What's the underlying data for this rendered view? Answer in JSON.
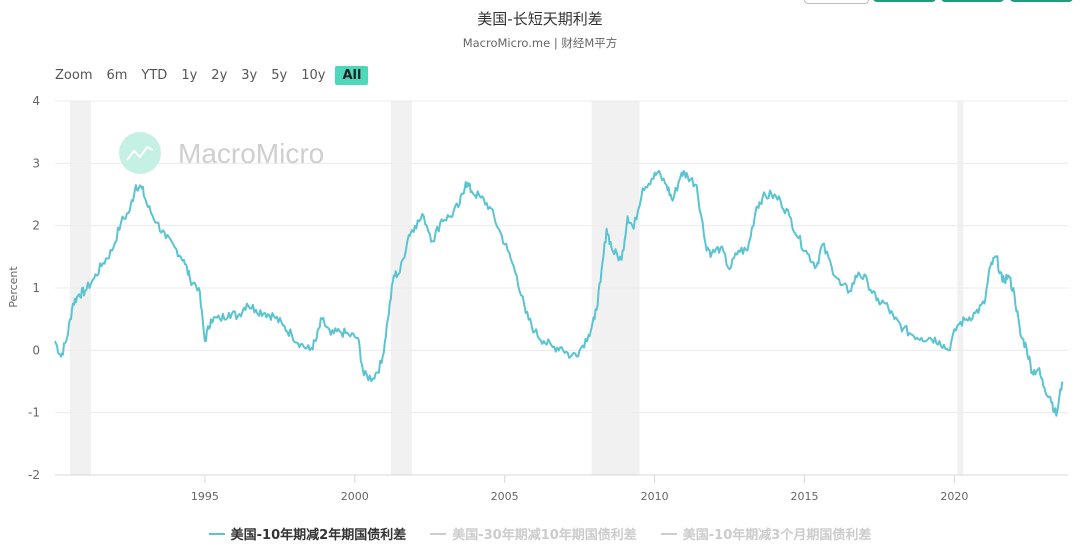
{
  "header": {
    "title": "美国-长短天期利差",
    "subtitle": "MacroMicro.me | 财经M平方",
    "watermark": "MacroMicro"
  },
  "zoom": {
    "label": "Zoom",
    "buttons": [
      "6m",
      "YTD",
      "1y",
      "2y",
      "3y",
      "5y",
      "10y",
      "All"
    ],
    "active": "All"
  },
  "colors": {
    "series_line": "#5bc4d1",
    "recession_band": "#f1f1f1",
    "grid": "#ececec",
    "zoom_active": "#4dd9b9",
    "top_button_green": "#239c7e",
    "legend_inactive": "#cccccc"
  },
  "legend": [
    {
      "label": "美国-10年期减2年期国债利差",
      "active": true
    },
    {
      "label": "美国-30年期减10年期国债利差",
      "active": false
    },
    {
      "label": "美国-10年期减3个月期国债利差",
      "active": false
    }
  ],
  "chart_data": {
    "type": "line",
    "title": "美国-长短天期利差",
    "subtitle": "MacroMicro.me | 财经M平方",
    "xlabel": "",
    "ylabel": "Percent",
    "ylim": [
      -2,
      4
    ],
    "yticks": [
      -2,
      -1,
      0,
      1,
      2,
      3,
      4
    ],
    "xticks": [
      1995,
      2000,
      2005,
      2010,
      2015,
      2020
    ],
    "xlim": [
      1990.0,
      2023.8
    ],
    "grid": true,
    "legend_position": "bottom",
    "recession_bands": [
      [
        1990.5,
        1991.2
      ],
      [
        2001.2,
        2001.9
      ],
      [
        2007.9,
        2009.5
      ],
      [
        2020.1,
        2020.3
      ]
    ],
    "series": [
      {
        "name": "美国-10年期减2年期国债利差",
        "x": [
          1990.0,
          1990.2,
          1990.4,
          1990.6,
          1990.8,
          1991.0,
          1991.3,
          1991.6,
          1991.9,
          1992.2,
          1992.5,
          1992.7,
          1992.9,
          1993.1,
          1993.4,
          1993.7,
          1994.0,
          1994.3,
          1994.5,
          1994.8,
          1995.0,
          1995.2,
          1995.5,
          1995.8,
          1996.1,
          1996.4,
          1996.7,
          1997.0,
          1997.3,
          1997.6,
          1997.9,
          1998.2,
          1998.5,
          1998.7,
          1998.9,
          1999.2,
          1999.5,
          1999.8,
          2000.1,
          2000.3,
          2000.6,
          2000.9,
          2001.1,
          2001.3,
          2001.5,
          2001.8,
          2002.0,
          2002.3,
          2002.6,
          2002.9,
          2003.2,
          2003.5,
          2003.7,
          2003.9,
          2004.2,
          2004.5,
          2004.8,
          2005.1,
          2005.4,
          2005.7,
          2006.0,
          2006.3,
          2006.6,
          2006.9,
          2007.2,
          2007.5,
          2007.8,
          2008.0,
          2008.2,
          2008.4,
          2008.6,
          2008.9,
          2009.1,
          2009.3,
          2009.6,
          2009.9,
          2010.1,
          2010.4,
          2010.6,
          2010.9,
          2011.1,
          2011.4,
          2011.7,
          2011.9,
          2012.2,
          2012.5,
          2012.8,
          2013.1,
          2013.4,
          2013.6,
          2013.9,
          2014.2,
          2014.5,
          2014.8,
          2015.1,
          2015.4,
          2015.6,
          2015.9,
          2016.2,
          2016.5,
          2016.8,
          2017.1,
          2017.4,
          2017.7,
          2018.0,
          2018.3,
          2018.6,
          2018.9,
          2019.2,
          2019.5,
          2019.8,
          2020.1,
          2020.4,
          2020.7,
          2021.0,
          2021.2,
          2021.4,
          2021.6,
          2021.8,
          2022.0,
          2022.2,
          2022.4,
          2022.6,
          2022.8,
          2023.0,
          2023.2,
          2023.4,
          2023.6
        ],
        "values": [
          0.15,
          -0.1,
          0.2,
          0.75,
          0.9,
          0.95,
          1.15,
          1.4,
          1.6,
          2.05,
          2.25,
          2.65,
          2.6,
          2.3,
          2.05,
          1.8,
          1.65,
          1.45,
          1.15,
          1.0,
          0.15,
          0.5,
          0.5,
          0.6,
          0.55,
          0.75,
          0.65,
          0.6,
          0.55,
          0.4,
          0.25,
          0.1,
          0.0,
          0.15,
          0.5,
          0.25,
          0.3,
          0.25,
          0.2,
          -0.4,
          -0.45,
          -0.2,
          0.5,
          1.2,
          1.25,
          1.85,
          2.0,
          2.15,
          1.75,
          2.1,
          2.15,
          2.35,
          2.7,
          2.55,
          2.45,
          2.3,
          1.95,
          1.6,
          1.2,
          0.6,
          0.3,
          0.15,
          0.05,
          0.05,
          -0.1,
          0.0,
          0.25,
          0.5,
          1.1,
          1.95,
          1.6,
          1.45,
          2.15,
          1.95,
          2.6,
          2.75,
          2.85,
          2.65,
          2.4,
          2.85,
          2.8,
          2.65,
          1.7,
          1.55,
          1.65,
          1.3,
          1.6,
          1.6,
          2.3,
          2.45,
          2.5,
          2.4,
          2.15,
          1.8,
          1.55,
          1.35,
          1.7,
          1.35,
          1.05,
          0.95,
          1.25,
          1.1,
          0.8,
          0.75,
          0.5,
          0.35,
          0.25,
          0.2,
          0.2,
          0.15,
          0.0,
          0.4,
          0.5,
          0.6,
          0.75,
          1.35,
          1.5,
          1.1,
          1.2,
          0.9,
          0.25,
          0.05,
          -0.35,
          -0.3,
          -0.6,
          -0.75,
          -1.05,
          -0.5
        ]
      }
    ]
  }
}
